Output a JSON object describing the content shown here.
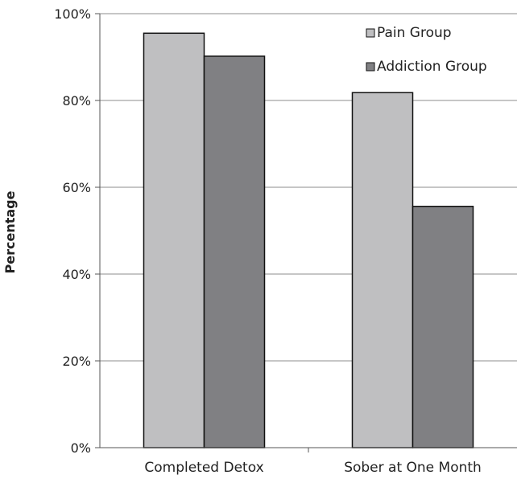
{
  "chart_data": {
    "type": "bar",
    "title": "",
    "xlabel": "",
    "ylabel": "Percentage",
    "ylim": [
      0,
      100
    ],
    "y_ticks": [
      "0%",
      "20%",
      "40%",
      "60%",
      "80%",
      "100%"
    ],
    "y_tick_values": [
      0,
      20,
      40,
      60,
      80,
      100
    ],
    "grid": true,
    "legend_position": "top-right",
    "categories": [
      "Completed Detox",
      "Sober at One Month"
    ],
    "series": [
      {
        "name": "Pain Group",
        "values": [
          95.5,
          81.8
        ],
        "color": "#bfbfc1"
      },
      {
        "name": "Addiction Group",
        "values": [
          90.2,
          55.6
        ],
        "color": "#808083"
      }
    ]
  }
}
